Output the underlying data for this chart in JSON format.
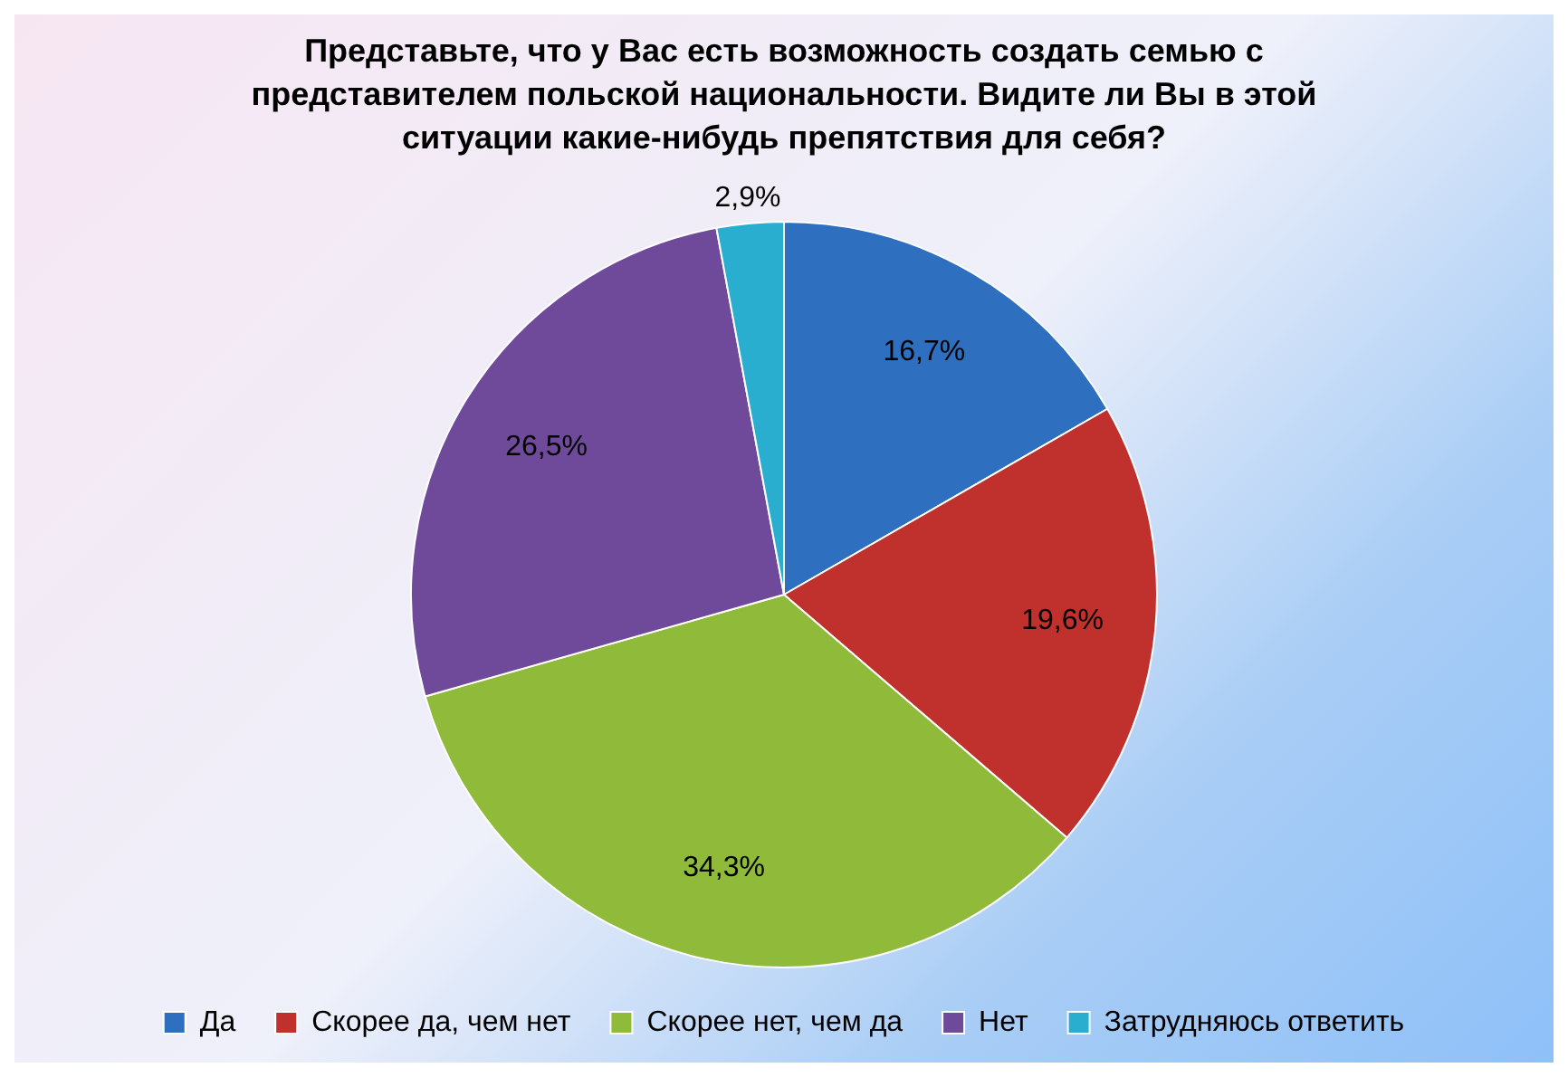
{
  "chart_data": {
    "type": "pie",
    "title": "Представьте, что у Вас есть возможность создать семью с представителем польской национальности.  Видите ли Вы в этой ситуации какие-нибудь препятствия для себя?",
    "categories": [
      "Да",
      "Скорее да, чем нет",
      "Скорее нет, чем да",
      "Нет",
      "Затрудняюсь ответить"
    ],
    "values": [
      16.7,
      19.6,
      34.3,
      26.5,
      2.9
    ],
    "value_labels": [
      "16,7%",
      "19,6%",
      "34,3%",
      "26,5%",
      "2,9%"
    ],
    "colors": [
      "#2e6fc0",
      "#c0302c",
      "#8fba3a",
      "#6f4a9a",
      "#2aaed0"
    ],
    "legend": "bottom"
  }
}
